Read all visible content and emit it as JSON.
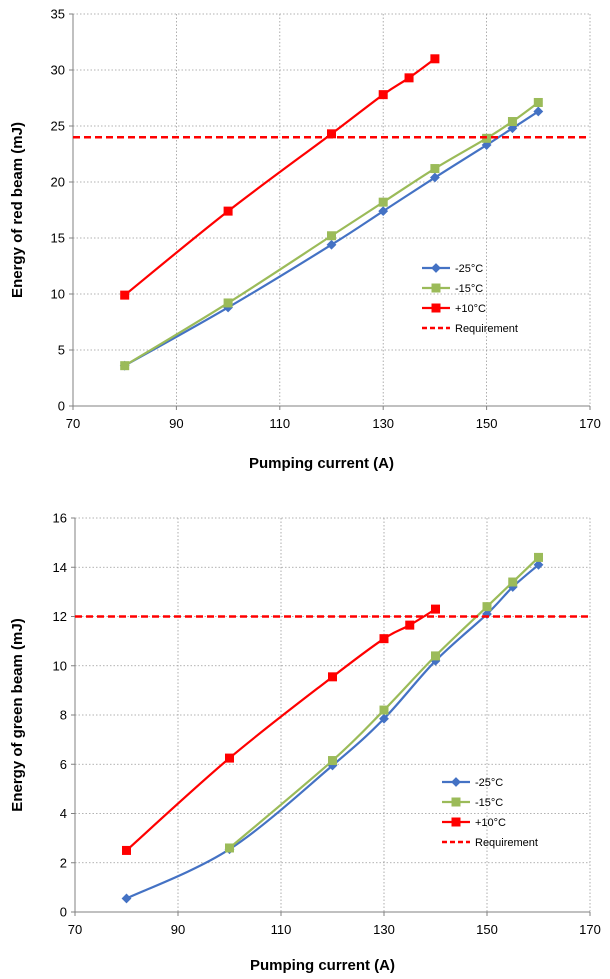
{
  "chart_data": [
    {
      "type": "line",
      "title": "",
      "xlabel": "Pumping current (A)",
      "ylabel": "Energy of red beam (mJ)",
      "xlim": [
        70,
        170
      ],
      "ylim": [
        0,
        35
      ],
      "xticks": [
        70,
        90,
        110,
        130,
        150,
        170
      ],
      "yticks": [
        0,
        5,
        10,
        15,
        20,
        25,
        30,
        35
      ],
      "grid": true,
      "legend_position": "right",
      "series": [
        {
          "name": "-25°C",
          "color": "#4472C4",
          "marker": "diamond",
          "x": [
            80,
            100,
            120,
            130,
            140,
            150,
            155,
            160
          ],
          "y": [
            3.6,
            8.8,
            14.4,
            17.4,
            20.4,
            23.3,
            24.8,
            26.3
          ]
        },
        {
          "name": "-15°C",
          "color": "#9BBB59",
          "marker": "square",
          "x": [
            80,
            100,
            120,
            130,
            140,
            150,
            155,
            160
          ],
          "y": [
            3.6,
            9.2,
            15.2,
            18.2,
            21.2,
            23.9,
            25.4,
            27.1
          ]
        },
        {
          "name": "+10°C",
          "color": "#FF0000",
          "marker": "square",
          "x": [
            80,
            100,
            120,
            130,
            135,
            140
          ],
          "y": [
            9.9,
            17.4,
            24.3,
            27.8,
            29.3,
            31.0
          ]
        },
        {
          "name": "Requirement",
          "color": "#FF0000",
          "dashed": true,
          "x": [
            70,
            170
          ],
          "y": [
            24,
            24
          ]
        }
      ]
    },
    {
      "type": "line",
      "title": "",
      "xlabel": "Pumping current (A)",
      "ylabel": "Energy of green beam (mJ)",
      "xlim": [
        70,
        170
      ],
      "ylim": [
        0,
        16
      ],
      "xticks": [
        70,
        90,
        110,
        130,
        150,
        170
      ],
      "yticks": [
        0,
        2,
        4,
        6,
        8,
        10,
        12,
        14,
        16
      ],
      "grid": true,
      "legend_position": "bottom-right",
      "series": [
        {
          "name": "-25°C",
          "color": "#4472C4",
          "marker": "diamond",
          "x": [
            80,
            100,
            120,
            130,
            140,
            150,
            155,
            160
          ],
          "y": [
            0.55,
            2.55,
            5.95,
            7.85,
            10.2,
            12.1,
            13.2,
            14.1
          ]
        },
        {
          "name": "-15°C",
          "color": "#9BBB59",
          "marker": "square",
          "x": [
            100,
            120,
            130,
            140,
            150,
            155,
            160
          ],
          "y": [
            2.6,
            6.15,
            8.2,
            10.4,
            12.4,
            13.4,
            14.4
          ]
        },
        {
          "name": "+10°C",
          "color": "#FF0000",
          "marker": "square",
          "x": [
            80,
            100,
            120,
            130,
            135,
            140
          ],
          "y": [
            2.5,
            6.25,
            9.55,
            11.1,
            11.65,
            12.3
          ]
        },
        {
          "name": "Requirement",
          "color": "#FF0000",
          "dashed": true,
          "x": [
            70,
            170
          ],
          "y": [
            12,
            12
          ]
        }
      ]
    }
  ]
}
